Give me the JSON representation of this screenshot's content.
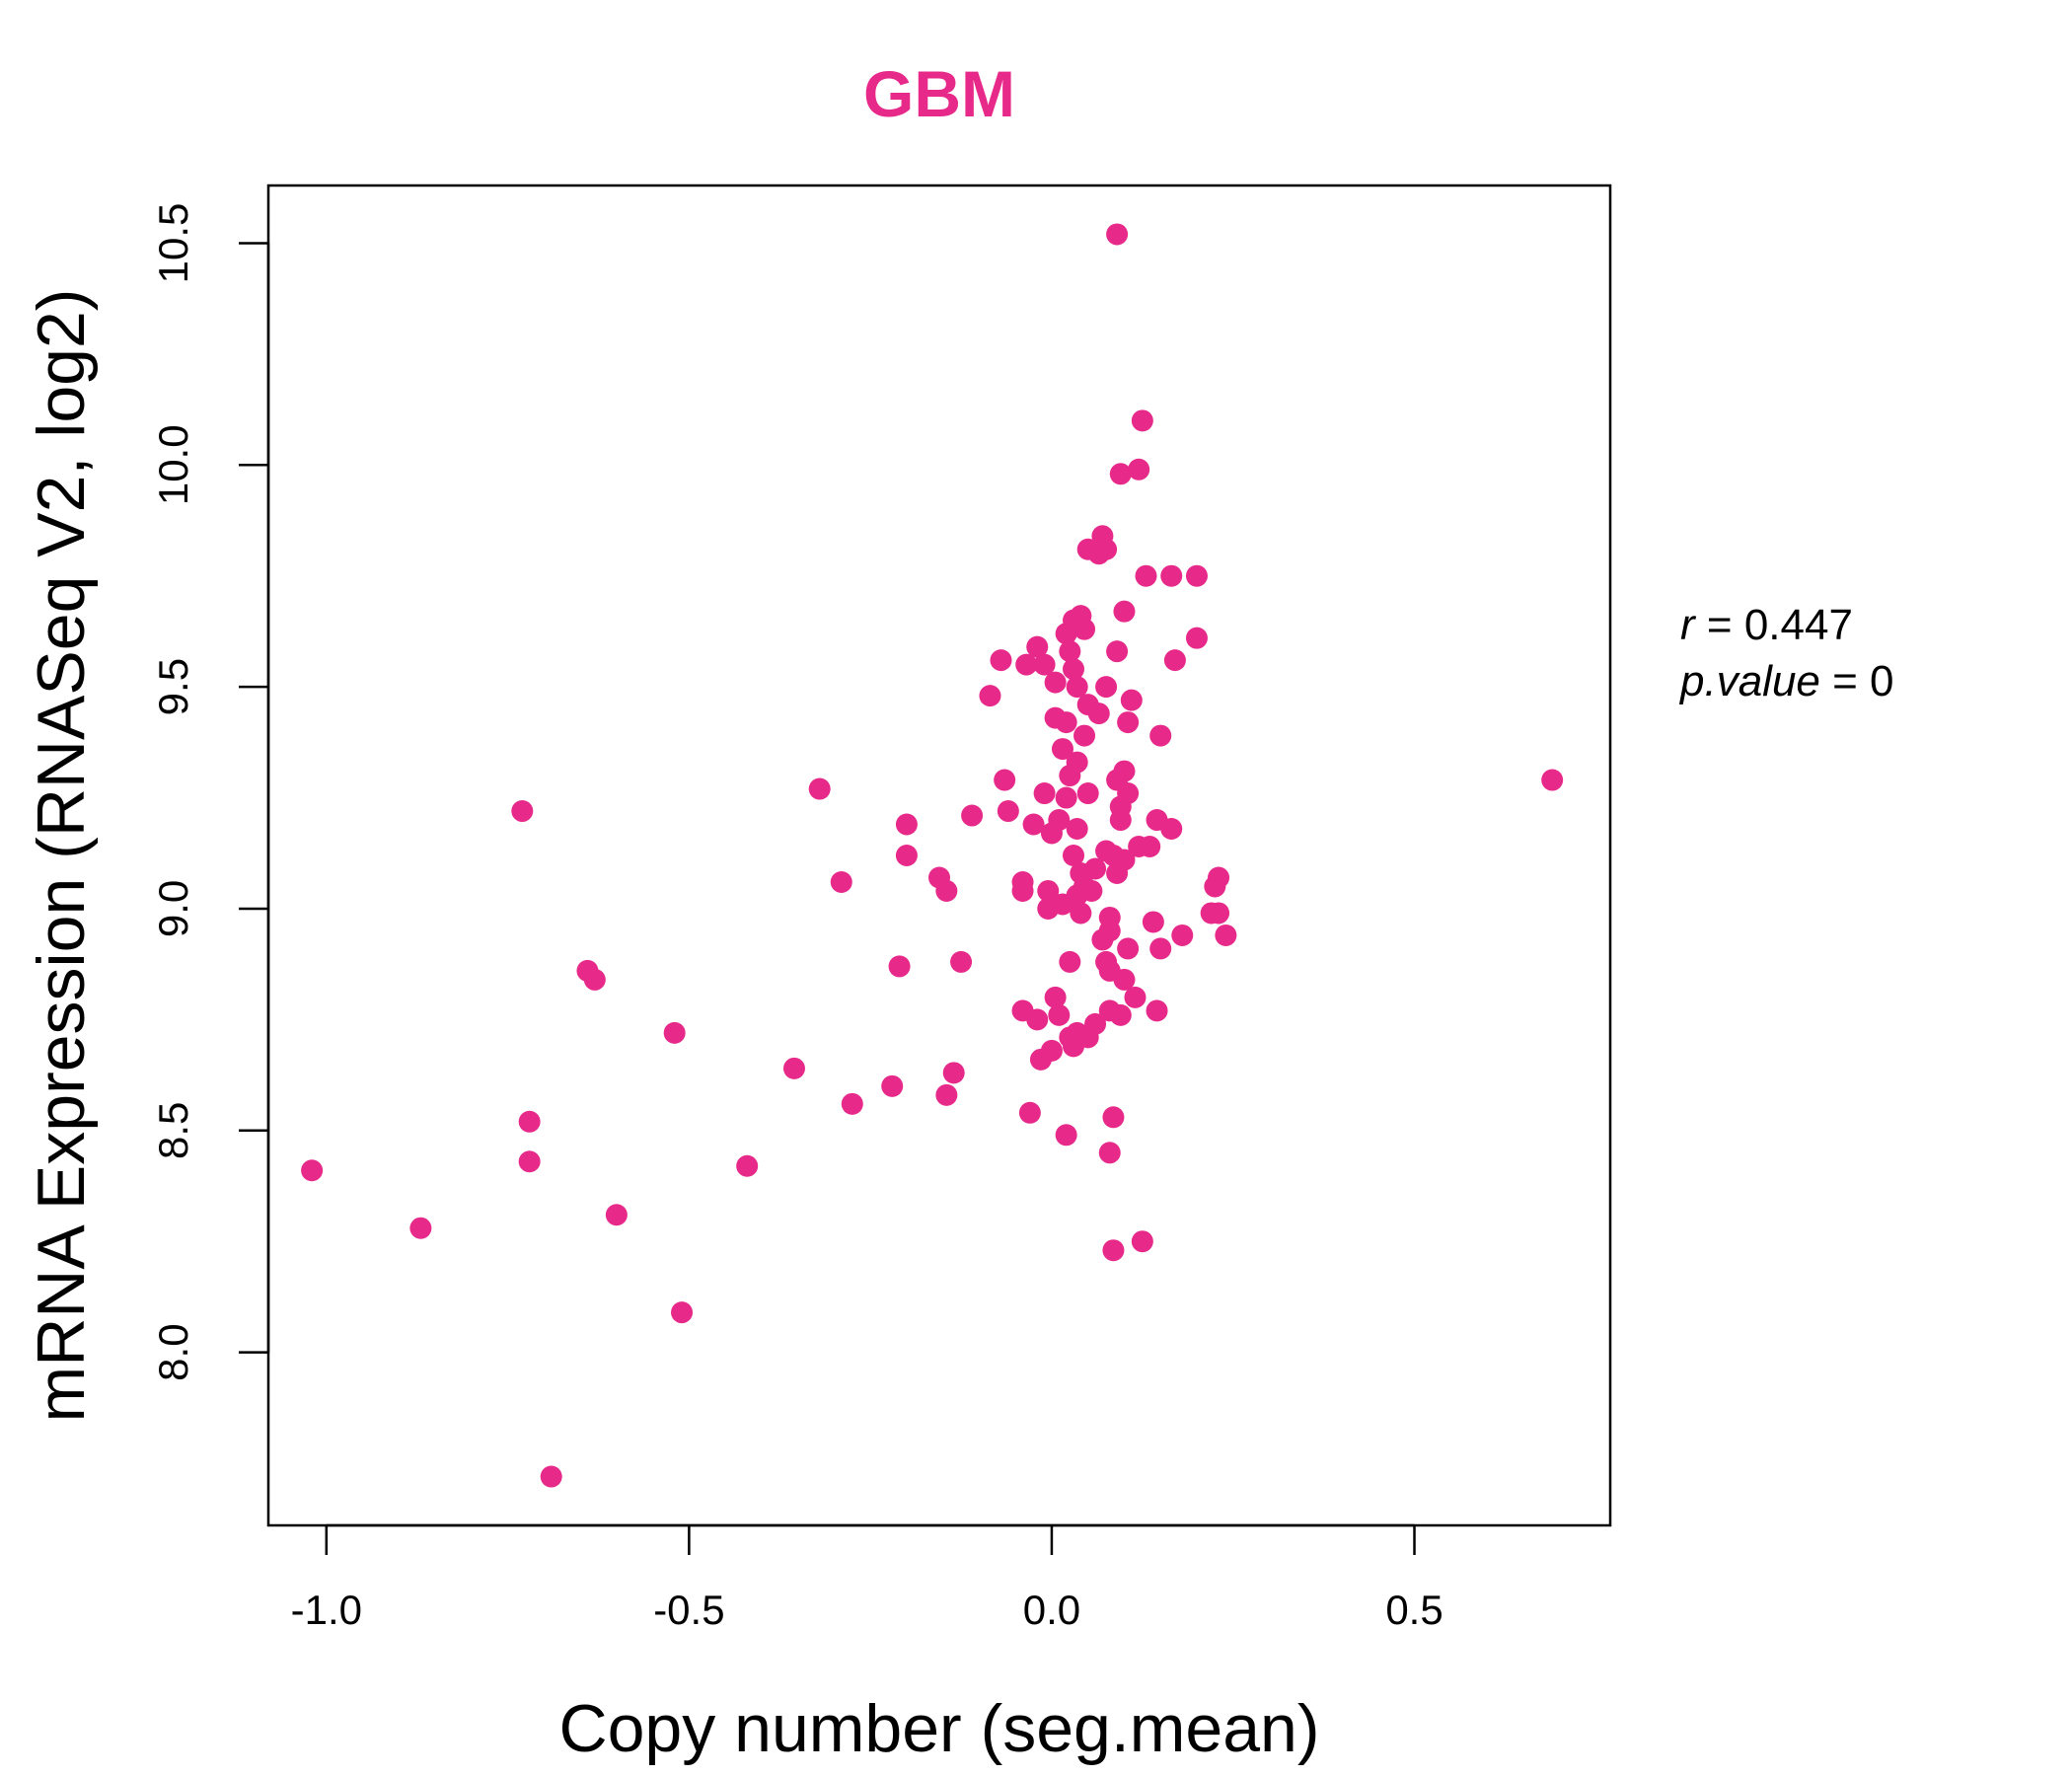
{
  "chart_data": {
    "type": "scatter",
    "title": "GBM",
    "xlabel": "Copy number (seg.mean)",
    "ylabel": "mRNA Expression (RNASeq V2, log2)",
    "xlim": [
      -1.08,
      0.77
    ],
    "ylim": [
      7.61,
      10.63
    ],
    "xticks": [
      -1.0,
      -0.5,
      0.0,
      0.5
    ],
    "xtick_labels": [
      "-1.0",
      "-0.5",
      "0.0",
      "0.5"
    ],
    "yticks": [
      8.0,
      8.5,
      9.0,
      9.5,
      10.0,
      10.5
    ],
    "ytick_labels": [
      "8.0",
      "8.5",
      "9.0",
      "9.5",
      "10.0",
      "10.5"
    ],
    "grid": false,
    "colors": {
      "points": "#e7298a",
      "title": "#e7298a",
      "axes": "#000000"
    },
    "stats": {
      "r_label": "r",
      "r_value": "0.447",
      "p_label": "p.value",
      "p_value": "0"
    },
    "points": [
      [
        -1.02,
        8.41
      ],
      [
        -0.87,
        8.28
      ],
      [
        -0.73,
        9.22
      ],
      [
        -0.72,
        8.52
      ],
      [
        -0.72,
        8.43
      ],
      [
        -0.69,
        7.72
      ],
      [
        -0.64,
        8.86
      ],
      [
        -0.63,
        8.84
      ],
      [
        -0.6,
        8.31
      ],
      [
        -0.52,
        8.72
      ],
      [
        -0.51,
        8.09
      ],
      [
        -0.42,
        8.42
      ],
      [
        -0.355,
        8.64
      ],
      [
        -0.32,
        9.27
      ],
      [
        -0.29,
        9.06
      ],
      [
        -0.275,
        8.56
      ],
      [
        -0.22,
        8.6
      ],
      [
        -0.21,
        8.87
      ],
      [
        -0.2,
        9.12
      ],
      [
        -0.2,
        9.19
      ],
      [
        -0.155,
        9.07
      ],
      [
        -0.145,
        9.04
      ],
      [
        -0.145,
        8.58
      ],
      [
        -0.135,
        8.63
      ],
      [
        -0.125,
        8.88
      ],
      [
        -0.11,
        9.21
      ],
      [
        -0.085,
        9.48
      ],
      [
        -0.07,
        9.56
      ],
      [
        -0.065,
        9.29
      ],
      [
        -0.06,
        9.22
      ],
      [
        -0.04,
        9.06
      ],
      [
        -0.04,
        9.04
      ],
      [
        -0.04,
        8.77
      ],
      [
        -0.035,
        9.55
      ],
      [
        -0.03,
        8.54
      ],
      [
        -0.025,
        9.19
      ],
      [
        -0.02,
        9.59
      ],
      [
        -0.02,
        8.75
      ],
      [
        -0.015,
        8.66
      ],
      [
        -0.01,
        9.55
      ],
      [
        -0.01,
        9.26
      ],
      [
        -0.005,
        9.04
      ],
      [
        -0.005,
        9.0
      ],
      [
        0.0,
        9.17
      ],
      [
        0.0,
        8.68
      ],
      [
        0.005,
        9.51
      ],
      [
        0.005,
        9.43
      ],
      [
        0.005,
        8.8
      ],
      [
        0.01,
        9.2
      ],
      [
        0.01,
        8.76
      ],
      [
        0.015,
        9.36
      ],
      [
        0.015,
        9.01
      ],
      [
        0.02,
        9.62
      ],
      [
        0.02,
        9.42
      ],
      [
        0.02,
        9.25
      ],
      [
        0.02,
        8.49
      ],
      [
        0.025,
        9.58
      ],
      [
        0.025,
        9.3
      ],
      [
        0.025,
        8.88
      ],
      [
        0.025,
        8.71
      ],
      [
        0.03,
        9.65
      ],
      [
        0.03,
        9.54
      ],
      [
        0.03,
        9.12
      ],
      [
        0.03,
        8.69
      ],
      [
        0.035,
        9.5
      ],
      [
        0.035,
        9.33
      ],
      [
        0.035,
        9.18
      ],
      [
        0.035,
        9.03
      ],
      [
        0.035,
        8.72
      ],
      [
        0.04,
        9.66
      ],
      [
        0.04,
        9.08
      ],
      [
        0.04,
        8.99
      ],
      [
        0.045,
        9.63
      ],
      [
        0.045,
        9.39
      ],
      [
        0.045,
        9.05
      ],
      [
        0.05,
        9.81
      ],
      [
        0.05,
        9.46
      ],
      [
        0.05,
        9.26
      ],
      [
        0.05,
        8.71
      ],
      [
        0.055,
        9.04
      ],
      [
        0.06,
        9.09
      ],
      [
        0.06,
        8.74
      ],
      [
        0.065,
        9.8
      ],
      [
        0.065,
        9.44
      ],
      [
        0.07,
        9.84
      ],
      [
        0.07,
        8.93
      ],
      [
        0.075,
        9.81
      ],
      [
        0.075,
        9.5
      ],
      [
        0.075,
        9.13
      ],
      [
        0.075,
        8.88
      ],
      [
        0.08,
        8.98
      ],
      [
        0.08,
        8.95
      ],
      [
        0.08,
        8.86
      ],
      [
        0.08,
        8.77
      ],
      [
        0.08,
        8.45
      ],
      [
        0.085,
        9.12
      ],
      [
        0.085,
        8.53
      ],
      [
        0.085,
        8.23
      ],
      [
        0.09,
        10.52
      ],
      [
        0.09,
        9.58
      ],
      [
        0.09,
        9.29
      ],
      [
        0.09,
        9.08
      ],
      [
        0.095,
        9.98
      ],
      [
        0.095,
        9.23
      ],
      [
        0.095,
        9.2
      ],
      [
        0.095,
        8.76
      ],
      [
        0.1,
        9.67
      ],
      [
        0.1,
        9.31
      ],
      [
        0.1,
        9.11
      ],
      [
        0.1,
        8.84
      ],
      [
        0.105,
        9.42
      ],
      [
        0.105,
        9.26
      ],
      [
        0.105,
        8.91
      ],
      [
        0.11,
        9.47
      ],
      [
        0.115,
        8.8
      ],
      [
        0.12,
        9.99
      ],
      [
        0.12,
        9.14
      ],
      [
        0.125,
        10.1
      ],
      [
        0.125,
        8.25
      ],
      [
        0.13,
        9.75
      ],
      [
        0.135,
        9.14
      ],
      [
        0.14,
        8.97
      ],
      [
        0.145,
        9.2
      ],
      [
        0.145,
        8.77
      ],
      [
        0.15,
        9.39
      ],
      [
        0.15,
        8.91
      ],
      [
        0.165,
        9.75
      ],
      [
        0.165,
        9.18
      ],
      [
        0.17,
        9.56
      ],
      [
        0.18,
        8.94
      ],
      [
        0.2,
        9.75
      ],
      [
        0.2,
        9.61
      ],
      [
        0.22,
        8.99
      ],
      [
        0.225,
        9.05
      ],
      [
        0.23,
        9.07
      ],
      [
        0.23,
        8.99
      ],
      [
        0.24,
        8.94
      ],
      [
        0.69,
        9.29
      ]
    ]
  }
}
